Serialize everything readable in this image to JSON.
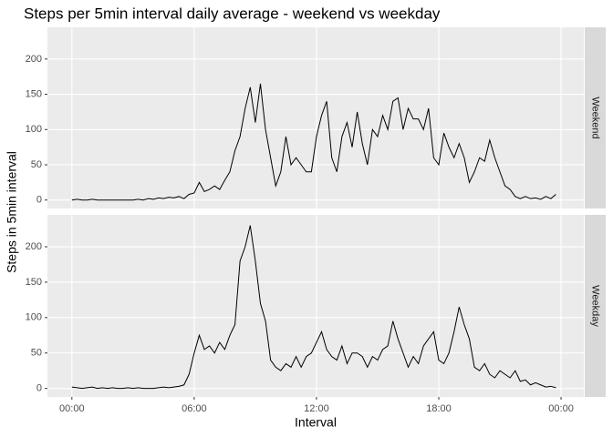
{
  "chart_data": {
    "type": "line",
    "facet": true,
    "title": "Steps per 5min interval daily average - weekend vs weekday",
    "xlabel": "Interval",
    "ylabel": "Steps in 5min interval",
    "x": [
      0,
      15,
      30,
      45,
      60,
      75,
      90,
      105,
      120,
      135,
      150,
      165,
      180,
      195,
      210,
      225,
      240,
      255,
      270,
      285,
      300,
      315,
      330,
      345,
      360,
      375,
      390,
      405,
      420,
      435,
      450,
      465,
      480,
      495,
      510,
      525,
      540,
      555,
      570,
      585,
      600,
      615,
      630,
      645,
      660,
      675,
      690,
      705,
      720,
      735,
      750,
      765,
      780,
      795,
      810,
      825,
      840,
      855,
      870,
      885,
      900,
      915,
      930,
      945,
      960,
      975,
      990,
      1005,
      1020,
      1035,
      1050,
      1065,
      1080,
      1095,
      1110,
      1125,
      1140,
      1155,
      1170,
      1185,
      1200,
      1215,
      1230,
      1245,
      1260,
      1275,
      1290,
      1305,
      1320,
      1335,
      1350,
      1365,
      1380,
      1395,
      1410,
      1425
    ],
    "series": [
      {
        "name": "Weekend",
        "color": "#000000",
        "values": [
          0,
          1,
          0,
          0,
          1,
          0,
          0,
          0,
          0,
          0,
          0,
          0,
          0,
          1,
          0,
          2,
          1,
          3,
          2,
          4,
          3,
          5,
          2,
          8,
          10,
          25,
          12,
          15,
          20,
          15,
          28,
          40,
          70,
          90,
          130,
          160,
          110,
          165,
          100,
          60,
          20,
          40,
          90,
          50,
          60,
          50,
          40,
          40,
          90,
          120,
          140,
          60,
          40,
          90,
          110,
          75,
          125,
          80,
          50,
          100,
          90,
          120,
          100,
          140,
          145,
          100,
          130,
          115,
          115,
          100,
          130,
          60,
          50,
          95,
          75,
          60,
          80,
          60,
          25,
          40,
          60,
          55,
          85,
          60,
          40,
          20,
          15,
          5,
          2,
          5,
          2,
          3,
          1,
          5,
          2,
          8
        ]
      },
      {
        "name": "Weekday",
        "color": "#000000",
        "values": [
          2,
          1,
          0,
          1,
          2,
          0,
          1,
          0,
          1,
          0,
          0,
          1,
          0,
          1,
          0,
          0,
          0,
          1,
          2,
          1,
          2,
          3,
          5,
          20,
          50,
          75,
          55,
          60,
          50,
          65,
          55,
          75,
          90,
          180,
          200,
          230,
          180,
          120,
          95,
          40,
          30,
          25,
          35,
          30,
          45,
          30,
          45,
          50,
          65,
          80,
          55,
          45,
          40,
          60,
          35,
          50,
          50,
          45,
          30,
          45,
          40,
          55,
          60,
          95,
          70,
          50,
          30,
          45,
          35,
          60,
          70,
          80,
          40,
          35,
          50,
          80,
          115,
          90,
          70,
          30,
          25,
          35,
          20,
          15,
          25,
          20,
          15,
          25,
          10,
          12,
          5,
          8,
          5,
          2,
          3,
          1
        ]
      }
    ],
    "xlim": [
      -72,
      1507
    ],
    "xticks": [
      {
        "value": 0,
        "label": "00:00"
      },
      {
        "value": 360,
        "label": "06:00"
      },
      {
        "value": 720,
        "label": "12:00"
      },
      {
        "value": 1080,
        "label": "18:00"
      },
      {
        "value": 1440,
        "label": "00:00"
      }
    ],
    "ylim": [
      -12,
      245
    ],
    "yticks": [
      0,
      50,
      100,
      150,
      200
    ],
    "grid": true
  }
}
